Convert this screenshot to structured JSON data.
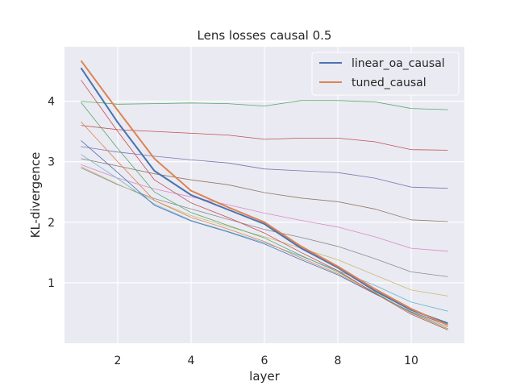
{
  "chart_data": {
    "type": "line",
    "title": "Lens losses causal 0.5",
    "xlabel": "layer",
    "ylabel": "KL-divergence",
    "xlim": [
      0.55,
      11.45
    ],
    "ylim": [
      0.0,
      4.9
    ],
    "xticks": [
      2,
      4,
      6,
      8,
      10
    ],
    "yticks": [
      1,
      2,
      3,
      4
    ],
    "grid": true,
    "legend_position": "top-right",
    "x": [
      1,
      2,
      3,
      4,
      5,
      6,
      7,
      8,
      9,
      10,
      11
    ],
    "series": [
      {
        "name": "linear_oa_causal",
        "color": "#4c72b0",
        "width": 2,
        "values": [
          4.55,
          3.65,
          2.85,
          2.45,
          2.21,
          1.97,
          1.57,
          1.25,
          0.87,
          0.55,
          0.33
        ]
      },
      {
        "name": "tuned_causal",
        "color": "#dd8452",
        "width": 2,
        "values": [
          4.67,
          3.85,
          3.05,
          2.52,
          2.25,
          2.0,
          1.6,
          1.27,
          0.9,
          0.57,
          0.3
        ]
      },
      {
        "color": "#55a868",
        "width": 0.8,
        "values": [
          4.0,
          3.95,
          3.96,
          3.97,
          3.96,
          3.92,
          4.01,
          4.01,
          3.99,
          3.88,
          3.86
        ]
      },
      {
        "color": "#c44e52",
        "width": 0.8,
        "values": [
          3.6,
          3.53,
          3.5,
          3.47,
          3.44,
          3.37,
          3.39,
          3.39,
          3.33,
          3.2,
          3.19
        ]
      },
      {
        "color": "#8172b3",
        "width": 0.8,
        "values": [
          3.25,
          3.16,
          3.09,
          3.03,
          2.98,
          2.88,
          2.85,
          2.82,
          2.73,
          2.58,
          2.56
        ]
      },
      {
        "color": "#937860",
        "width": 0.8,
        "values": [
          3.05,
          2.93,
          2.8,
          2.7,
          2.62,
          2.49,
          2.4,
          2.34,
          2.22,
          2.04,
          2.01
        ]
      },
      {
        "color": "#da8bc3",
        "width": 0.8,
        "values": [
          2.95,
          2.73,
          2.55,
          2.42,
          2.29,
          2.15,
          2.03,
          1.92,
          1.76,
          1.57,
          1.52
        ]
      },
      {
        "color": "#8c8c8c",
        "width": 0.8,
        "values": [
          2.9,
          2.62,
          2.39,
          2.22,
          2.05,
          1.88,
          1.75,
          1.6,
          1.4,
          1.18,
          1.1
        ]
      },
      {
        "color": "#ccb974",
        "width": 0.8,
        "values": [
          2.92,
          2.63,
          2.36,
          2.11,
          1.93,
          1.76,
          1.57,
          1.38,
          1.13,
          0.88,
          0.78
        ]
      },
      {
        "color": "#64b5cd",
        "width": 0.8,
        "values": [
          3.12,
          2.72,
          2.3,
          2.03,
          1.85,
          1.66,
          1.44,
          1.2,
          0.96,
          0.68,
          0.53
        ]
      },
      {
        "color": "#4c72b0",
        "width": 0.8,
        "values": [
          3.35,
          2.82,
          2.28,
          2.02,
          1.84,
          1.64,
          1.38,
          1.13,
          0.82,
          0.52,
          0.3
        ]
      },
      {
        "color": "#dd8452",
        "width": 0.8,
        "values": [
          3.66,
          3.0,
          2.36,
          2.08,
          1.89,
          1.68,
          1.41,
          1.15,
          0.83,
          0.51,
          0.27
        ]
      },
      {
        "color": "#55a868",
        "width": 0.8,
        "values": [
          3.98,
          3.22,
          2.5,
          2.16,
          1.95,
          1.74,
          1.45,
          1.18,
          0.84,
          0.5,
          0.24
        ]
      },
      {
        "color": "#c44e52",
        "width": 0.8,
        "values": [
          4.35,
          3.5,
          2.7,
          2.32,
          2.08,
          1.82,
          1.5,
          1.2,
          0.83,
          0.48,
          0.22
        ]
      }
    ]
  }
}
